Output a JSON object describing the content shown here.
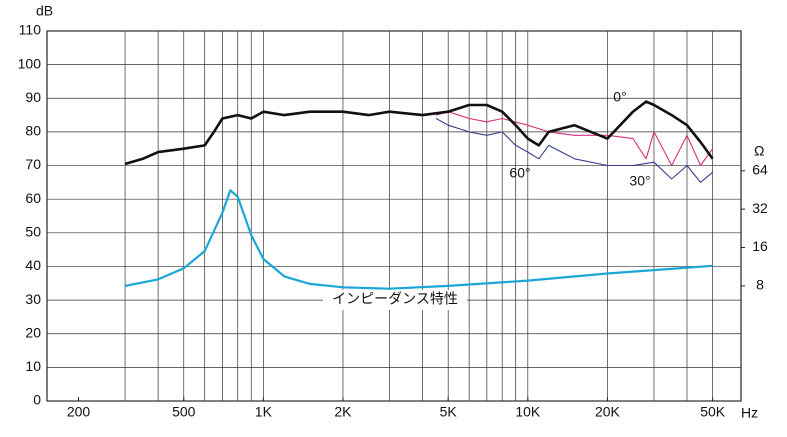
{
  "chart_data": {
    "type": "line",
    "y_label": "dB",
    "y2_label": "Ω",
    "x_label": "Hz",
    "xlog": true,
    "y2log": true,
    "grid": true,
    "xlim": [
      152,
      64000
    ],
    "xticks": [
      200,
      500,
      {
        "value": 1000,
        "label": "1K"
      },
      {
        "value": 2000,
        "label": "2K"
      },
      {
        "value": 5000,
        "label": "5K"
      },
      {
        "value": 10000,
        "label": "10K"
      },
      {
        "value": 20000,
        "label": "20K"
      },
      {
        "value": 50000,
        "label": "50K"
      }
    ],
    "xgrid": [
      300,
      400,
      500,
      600,
      700,
      800,
      900,
      1000,
      2000,
      3000,
      4000,
      5000,
      6000,
      7000,
      8000,
      9000,
      10000,
      20000,
      30000,
      40000,
      50000
    ],
    "ylim": [
      0,
      110
    ],
    "yticks": [
      0,
      10,
      20,
      30,
      40,
      50,
      60,
      70,
      80,
      90,
      100,
      110
    ],
    "y2lim": [
      1,
      800
    ],
    "y2ticks": [
      8,
      16,
      32,
      64
    ],
    "series": [
      {
        "name": "0°",
        "color": "#111111",
        "x": [
          300,
          350,
          400,
          500,
          600,
          650,
          700,
          800,
          900,
          1000,
          1200,
          1500,
          2000,
          2500,
          3000,
          4000,
          5000,
          6000,
          7000,
          8000,
          9000,
          10000,
          11000,
          12000,
          15000,
          20000,
          25000,
          28000,
          30000,
          35000,
          40000,
          45000,
          50000
        ],
        "values": [
          70.5,
          72,
          74,
          75,
          76,
          80,
          84,
          85,
          84,
          86,
          85,
          86,
          86,
          85,
          86,
          85,
          86,
          88,
          88,
          86,
          82,
          78,
          76,
          80,
          82,
          78,
          86,
          89,
          88,
          85,
          82,
          77,
          72
        ]
      },
      {
        "name": "30°",
        "color": "#d6317a",
        "x": [
          4500,
          5000,
          6000,
          7000,
          8000,
          10000,
          12000,
          15000,
          20000,
          25000,
          28000,
          30000,
          35000,
          40000,
          45000,
          50000
        ],
        "values": [
          85,
          86,
          84,
          83,
          84,
          82,
          80,
          79,
          79,
          78,
          72,
          80,
          70,
          79,
          70,
          75
        ]
      },
      {
        "name": "60°",
        "color": "#3a3e8c",
        "x": [
          4500,
          5000,
          6000,
          7000,
          8000,
          9000,
          10000,
          11000,
          12000,
          15000,
          20000,
          25000,
          30000,
          35000,
          40000,
          45000,
          50000
        ],
        "values": [
          84,
          82,
          80,
          79,
          80,
          76,
          74,
          72,
          76,
          72,
          70,
          70,
          71,
          66,
          70,
          65,
          68
        ]
      },
      {
        "name": "インピーダンス特性",
        "color": "#1aa7d8",
        "axis": "y2",
        "x": [
          300,
          400,
          500,
          600,
          700,
          750,
          800,
          900,
          1000,
          1200,
          1500,
          2000,
          3000,
          5000,
          10000,
          20000,
          50000
        ],
        "values": [
          8,
          9,
          11,
          15,
          30,
          45,
          40,
          20,
          13,
          9.5,
          8.3,
          7.8,
          7.6,
          8,
          8.8,
          10,
          11.5
        ]
      }
    ]
  }
}
